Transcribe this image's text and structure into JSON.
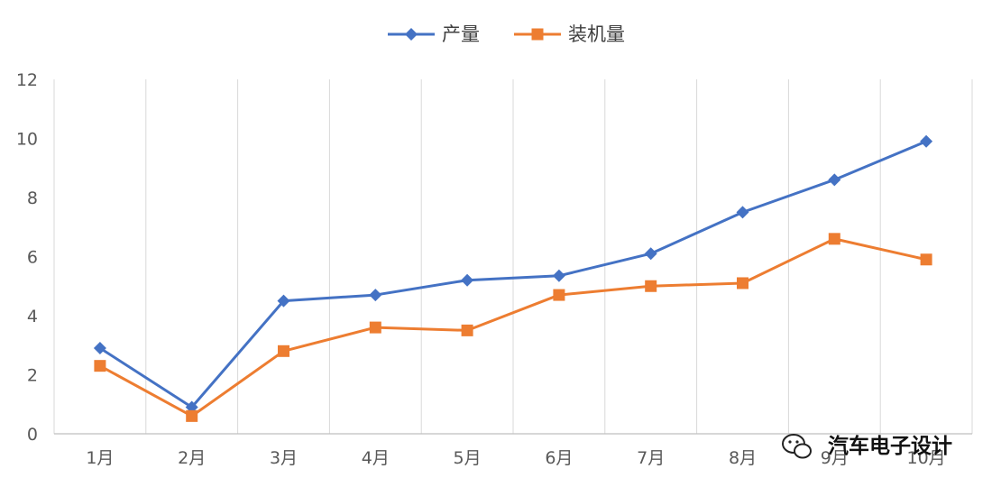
{
  "chart_data": {
    "type": "line",
    "categories": [
      "1月",
      "2月",
      "3月",
      "4月",
      "5月",
      "6月",
      "7月",
      "8月",
      "9月",
      "10月"
    ],
    "series": [
      {
        "name": "产量",
        "values": [
          2.9,
          0.9,
          4.5,
          4.7,
          5.2,
          5.35,
          6.1,
          7.5,
          8.6,
          9.9
        ],
        "color": "#4472C4",
        "marker": "diamond"
      },
      {
        "name": "装机量",
        "values": [
          2.3,
          0.6,
          2.8,
          3.6,
          3.5,
          4.7,
          5.0,
          5.1,
          6.6,
          5.9
        ],
        "color": "#ED7D31",
        "marker": "square"
      }
    ],
    "ylim": [
      0,
      12
    ],
    "yticks": [
      0,
      2,
      4,
      6,
      8,
      10,
      12
    ],
    "grid": "vertical",
    "legend": "top-center"
  },
  "watermark": {
    "text": "汽车电子设计",
    "icon": "wechat-icon"
  }
}
